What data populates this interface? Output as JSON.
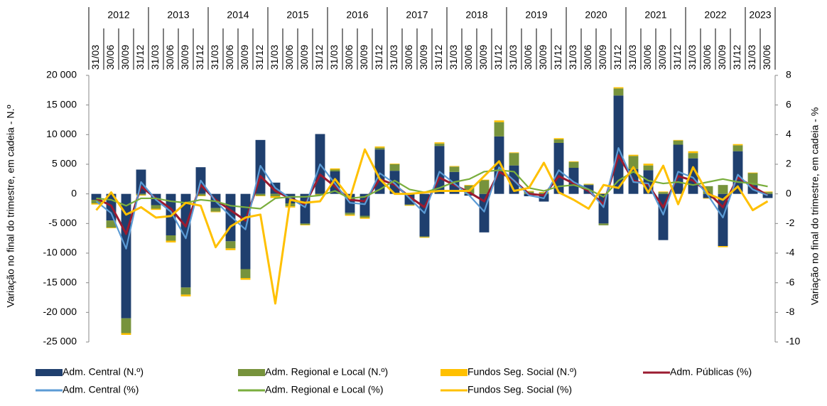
{
  "chart_data": {
    "type": "bar_line",
    "y_label": "Variação no final do trimestre, em cadeia - N.º",
    "y2_label": "Variação no final do trimestre, em cadeia  - %",
    "years": [
      "2012",
      "2013",
      "2014",
      "2015",
      "2016",
      "2017",
      "2018",
      "2019",
      "2020",
      "2021",
      "2022",
      "2023"
    ],
    "categories": [
      "31/03",
      "30/06",
      "30/09",
      "31/12",
      "31/03",
      "30/06",
      "30/09",
      "31/12",
      "31/03",
      "30/06",
      "30/09",
      "31/12",
      "31/03",
      "30/06",
      "30/09",
      "31/12",
      "31/03",
      "30/06",
      "30/09",
      "31/12",
      "31/03",
      "30/06",
      "30/09",
      "31/12",
      "31/03",
      "30/06",
      "30/09",
      "31/12",
      "31/03",
      "30/06",
      "30/09",
      "31/12",
      "31/03",
      "30/06",
      "30/09",
      "31/12",
      "31/03",
      "30/06",
      "30/09",
      "31/12",
      "31/03",
      "30/06",
      "30/09",
      "31/12",
      "31/03",
      "30/06"
    ],
    "ylim": [
      -25000,
      20000
    ],
    "yticks": [
      {
        "value": -25000,
        "label": "-25 000"
      },
      {
        "value": -20000,
        "label": "-20 000"
      },
      {
        "value": -15000,
        "label": "-15 000"
      },
      {
        "value": -10000,
        "label": "-10 000"
      },
      {
        "value": -5000,
        "label": "-5 000"
      },
      0,
      {
        "value": 5000,
        "label": "5 000"
      },
      {
        "value": 10000,
        "label": "10 000"
      },
      {
        "value": 15000,
        "label": "15 000"
      },
      {
        "value": 20000,
        "label": "20 000"
      }
    ],
    "y2lim": [
      -10,
      8
    ],
    "y2ticks": [
      -10,
      -8,
      -6,
      -4,
      -2,
      0,
      2,
      4,
      6,
      8
    ],
    "series": [
      {
        "name": "Adm. Central (N.º)",
        "type": "bar",
        "color": "#1f3f6e",
        "values": [
          -1000,
          -4500,
          -21000,
          4100,
          -1900,
          -7000,
          -15800,
          4500,
          -2400,
          -8000,
          -12700,
          9100,
          1900,
          -1600,
          -5000,
          10100,
          3800,
          -3200,
          -3700,
          7500,
          3900,
          -1800,
          -7200,
          8100,
          3700,
          -300,
          -6500,
          9700,
          4800,
          -400,
          -1300,
          8600,
          4400,
          1500,
          -5000,
          16600,
          4200,
          4000,
          -7800,
          8300,
          6000,
          -700,
          -8800,
          7200,
          1500,
          -700
        ]
      },
      {
        "name": "Adm. Regional e Local (N.º)",
        "type": "bar",
        "color": "#77933c",
        "values": [
          -600,
          -1200,
          -2500,
          -200,
          -600,
          -900,
          -1200,
          -300,
          -600,
          -1200,
          -1500,
          -300,
          -400,
          -500,
          -200,
          -100,
          300,
          -300,
          -300,
          300,
          1100,
          -100,
          -100,
          400,
          900,
          1400,
          2300,
          2400,
          2100,
          400,
          200,
          600,
          1000,
          100,
          -300,
          1200,
          2200,
          800,
          300,
          700,
          900,
          1300,
          1500,
          1000,
          2000,
          300
        ]
      },
      {
        "name": "Fundos Seg. Social (N.º)",
        "type": "bar",
        "color": "#ffc000",
        "values": [
          -200,
          -100,
          -300,
          -100,
          -200,
          -300,
          -300,
          -100,
          -100,
          -300,
          -300,
          -100,
          -300,
          -200,
          -100,
          -100,
          200,
          -200,
          -200,
          200,
          100,
          -100,
          -100,
          200,
          100,
          100,
          100,
          300,
          100,
          100,
          100,
          200,
          100,
          100,
          100,
          200,
          200,
          300,
          100,
          100,
          300,
          -100,
          -200,
          200,
          100,
          100
        ]
      },
      {
        "name": "Adm. Públicas (%)",
        "type": "line",
        "axis": "y2",
        "color": "#9b1b30",
        "values": [
          -0.3,
          -0.8,
          -2.7,
          0.5,
          -0.3,
          -1.0,
          -2.2,
          0.6,
          -0.4,
          -1.1,
          -1.8,
          1.2,
          0.2,
          -0.3,
          -0.7,
          1.3,
          0.5,
          -0.4,
          -0.5,
          1.0,
          0.6,
          -0.2,
          -0.9,
          1.1,
          0.6,
          0.1,
          -0.5,
          1.5,
          0.9,
          0.0,
          -0.1,
          1.2,
          0.7,
          0.2,
          -0.7,
          2.6,
          0.9,
          0.6,
          -0.9,
          1.2,
          0.9,
          0.1,
          -0.9,
          1.1,
          0.5,
          -0.1
        ]
      },
      {
        "name": "Adm. Central (%)",
        "type": "line",
        "axis": "y2",
        "color": "#5b9bd5",
        "values": [
          -0.5,
          -1.3,
          -3.7,
          0.8,
          -0.4,
          -1.2,
          -3.0,
          0.9,
          -0.5,
          -1.5,
          -2.4,
          1.9,
          0.4,
          -0.3,
          -0.9,
          2.0,
          0.7,
          -0.6,
          -0.7,
          1.4,
          0.7,
          -0.3,
          -1.3,
          1.5,
          0.7,
          -0.1,
          -1.2,
          1.8,
          0.9,
          -0.1,
          -0.3,
          1.6,
          0.8,
          0.3,
          -0.9,
          3.1,
          0.8,
          0.7,
          -1.4,
          1.5,
          1.1,
          -0.1,
          -1.6,
          1.3,
          0.3,
          -0.1
        ]
      },
      {
        "name": "Adm. Regional e Local (%)",
        "type": "line",
        "axis": "y2",
        "color": "#7aae3d",
        "values": [
          -0.3,
          -0.4,
          -0.8,
          -0.3,
          -0.3,
          -0.5,
          -0.6,
          -0.4,
          -0.5,
          -0.8,
          -0.9,
          -1.0,
          -0.3,
          -0.2,
          -0.2,
          -0.1,
          0.2,
          -0.3,
          -0.2,
          0.3,
          0.9,
          0.3,
          0.1,
          0.4,
          0.8,
          1.0,
          1.5,
          1.6,
          1.5,
          0.4,
          0.2,
          0.5,
          0.6,
          0.3,
          -0.2,
          0.9,
          1.5,
          0.9,
          0.7,
          0.8,
          0.6,
          0.8,
          1.0,
          0.8,
          0.7,
          0.5
        ]
      },
      {
        "name": "Fundos Seg. Social (%)",
        "type": "line",
        "axis": "y2",
        "color": "#ffc000",
        "values": [
          -1.1,
          0.1,
          -1.4,
          -0.9,
          -1.6,
          -1.5,
          -0.6,
          -0.8,
          -3.6,
          -2.2,
          -1.6,
          -1.4,
          -7.4,
          -0.4,
          -0.6,
          -0.5,
          1.0,
          -0.3,
          3.0,
          1.0,
          0.0,
          0.0,
          0.1,
          0.2,
          0.2,
          0.2,
          1.2,
          2.2,
          0.2,
          0.4,
          2.1,
          0.1,
          -0.4,
          -1.0,
          0.6,
          0.4,
          1.8,
          0.1,
          1.9,
          -0.7,
          1.8,
          0.0,
          -0.4,
          0.5,
          -1.1,
          -0.5
        ]
      }
    ]
  }
}
